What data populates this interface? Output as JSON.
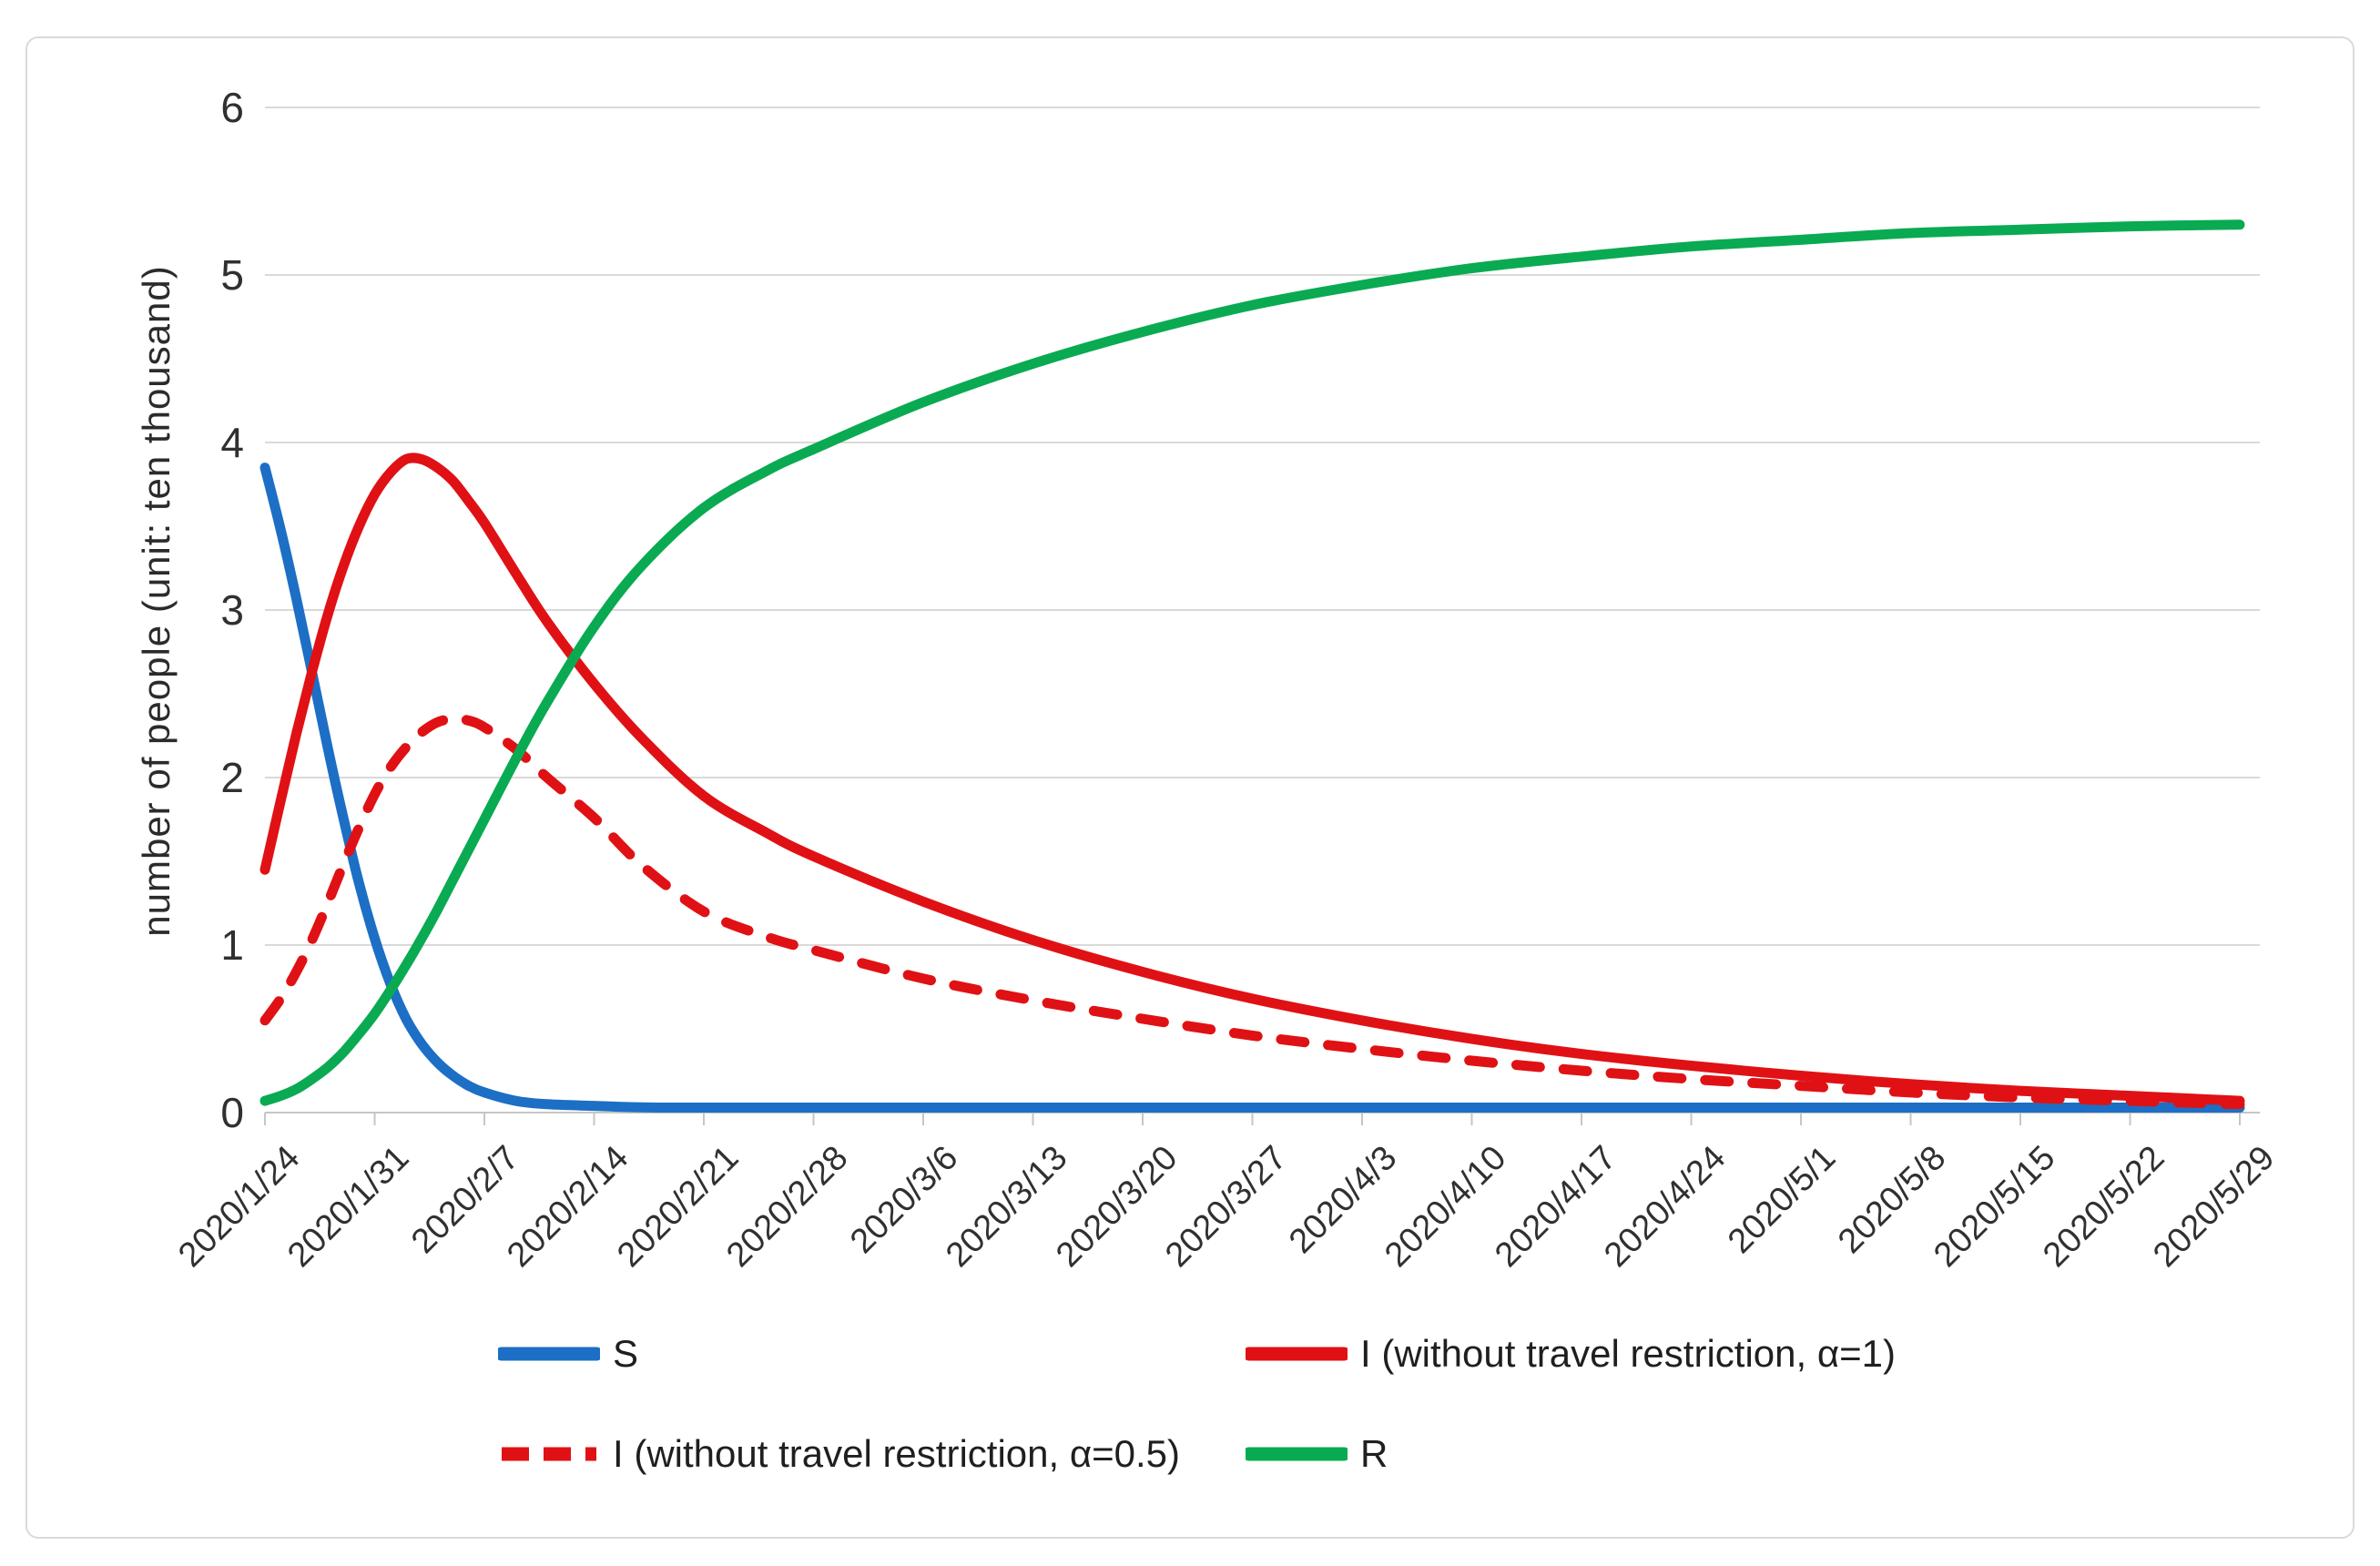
{
  "figure": {
    "background": "#ffffff",
    "border_color": "#dadada"
  },
  "y_axis": {
    "title": "number of people (unit: ten thousand)",
    "ticks": [
      "0",
      "1",
      "2",
      "3",
      "4",
      "5",
      "6"
    ],
    "range": [
      0,
      6
    ]
  },
  "x_axis": {
    "ticks": [
      "2020/1/24",
      "2020/1/31",
      "2020/2/7",
      "2020/2/14",
      "2020/2/21",
      "2020/2/28",
      "2020/3/6",
      "2020/3/13",
      "2020/3/20",
      "2020/3/27",
      "2020/4/3",
      "2020/4/10",
      "2020/4/17",
      "2020/4/24",
      "2020/5/1",
      "2020/5/8",
      "2020/5/15",
      "2020/5/22",
      "2020/5/29"
    ]
  },
  "legend": {
    "items": [
      {
        "label": "S",
        "color": "#1c6fc4",
        "style": "solid"
      },
      {
        "label": "I (without travel restriction, α=1)",
        "color": "#e01114",
        "style": "solid"
      },
      {
        "label": "I  (without travel restriction, α=0.5)",
        "color": "#e01114",
        "style": "dashed"
      },
      {
        "label": "R",
        "color": "#0aaa52",
        "style": "solid"
      }
    ]
  },
  "chart_data": {
    "type": "line",
    "title": "",
    "xlabel": "",
    "ylabel": "number of people (unit: ten thousand)",
    "ylim": [
      0,
      6
    ],
    "grid": "horizontal",
    "legend_position": "bottom",
    "x_unit": "days since 2020/1/24, ticks weekly",
    "x_tick_labels": [
      "2020/1/24",
      "2020/1/31",
      "2020/2/7",
      "2020/2/14",
      "2020/2/21",
      "2020/2/28",
      "2020/3/6",
      "2020/3/13",
      "2020/3/20",
      "2020/3/27",
      "2020/4/3",
      "2020/4/10",
      "2020/4/17",
      "2020/4/24",
      "2020/5/1",
      "2020/5/8",
      "2020/5/15",
      "2020/5/22",
      "2020/5/29"
    ],
    "series": [
      {
        "name": "S",
        "color": "#1c6fc4",
        "dash": "solid",
        "points": [
          [
            0,
            3.85
          ],
          [
            1,
            3.48
          ],
          [
            2,
            3.07
          ],
          [
            3,
            2.63
          ],
          [
            4,
            2.18
          ],
          [
            5,
            1.76
          ],
          [
            6,
            1.37
          ],
          [
            7,
            1.04
          ],
          [
            8,
            0.77
          ],
          [
            9,
            0.56
          ],
          [
            10,
            0.41
          ],
          [
            11,
            0.3
          ],
          [
            12,
            0.22
          ],
          [
            13,
            0.16
          ],
          [
            14,
            0.12
          ],
          [
            16,
            0.07
          ],
          [
            18,
            0.05
          ],
          [
            21,
            0.04
          ],
          [
            25,
            0.03
          ],
          [
            35,
            0.03
          ],
          [
            56,
            0.03
          ],
          [
            91,
            0.03
          ],
          [
            126,
            0.03
          ]
        ]
      },
      {
        "name": "I (without travel restriction, α=1)",
        "color": "#e01114",
        "dash": "solid",
        "points": [
          [
            0,
            1.45
          ],
          [
            1,
            1.86
          ],
          [
            2,
            2.26
          ],
          [
            3,
            2.63
          ],
          [
            4,
            2.97
          ],
          [
            5,
            3.26
          ],
          [
            6,
            3.5
          ],
          [
            7,
            3.69
          ],
          [
            8,
            3.82
          ],
          [
            9,
            3.9
          ],
          [
            10,
            3.9
          ],
          [
            11,
            3.85
          ],
          [
            12,
            3.77
          ],
          [
            13,
            3.65
          ],
          [
            14,
            3.52
          ],
          [
            16,
            3.22
          ],
          [
            18,
            2.93
          ],
          [
            21,
            2.56
          ],
          [
            24,
            2.24
          ],
          [
            28,
            1.89
          ],
          [
            32,
            1.67
          ],
          [
            35,
            1.53
          ],
          [
            42,
            1.26
          ],
          [
            49,
            1.03
          ],
          [
            56,
            0.84
          ],
          [
            63,
            0.68
          ],
          [
            70,
            0.55
          ],
          [
            77,
            0.44
          ],
          [
            84,
            0.35
          ],
          [
            91,
            0.28
          ],
          [
            98,
            0.22
          ],
          [
            105,
            0.17
          ],
          [
            112,
            0.13
          ],
          [
            119,
            0.1
          ],
          [
            126,
            0.07
          ]
        ]
      },
      {
        "name": "I (without travel restriction, α=0.5)",
        "color": "#e01114",
        "dash": "dashed",
        "points": [
          [
            0,
            0.55
          ],
          [
            1,
            0.68
          ],
          [
            2,
            0.84
          ],
          [
            3,
            1.03
          ],
          [
            4,
            1.25
          ],
          [
            5,
            1.48
          ],
          [
            6,
            1.7
          ],
          [
            7,
            1.9
          ],
          [
            8,
            2.06
          ],
          [
            9,
            2.18
          ],
          [
            10,
            2.27
          ],
          [
            11,
            2.33
          ],
          [
            12,
            2.35
          ],
          [
            13,
            2.34
          ],
          [
            14,
            2.3
          ],
          [
            16,
            2.17
          ],
          [
            18,
            2.0
          ],
          [
            21,
            1.76
          ],
          [
            24,
            1.48
          ],
          [
            28,
            1.2
          ],
          [
            32,
            1.05
          ],
          [
            35,
            0.97
          ],
          [
            42,
            0.8
          ],
          [
            49,
            0.67
          ],
          [
            56,
            0.56
          ],
          [
            63,
            0.46
          ],
          [
            70,
            0.38
          ],
          [
            77,
            0.31
          ],
          [
            84,
            0.25
          ],
          [
            91,
            0.2
          ],
          [
            98,
            0.16
          ],
          [
            105,
            0.12
          ],
          [
            112,
            0.09
          ],
          [
            119,
            0.07
          ],
          [
            126,
            0.05
          ]
        ]
      },
      {
        "name": "R",
        "color": "#0aaa52",
        "dash": "solid",
        "points": [
          [
            0,
            0.07
          ],
          [
            1,
            0.1
          ],
          [
            2,
            0.14
          ],
          [
            3,
            0.2
          ],
          [
            4,
            0.27
          ],
          [
            5,
            0.36
          ],
          [
            6,
            0.47
          ],
          [
            7,
            0.59
          ],
          [
            8,
            0.73
          ],
          [
            9,
            0.88
          ],
          [
            10,
            1.04
          ],
          [
            11,
            1.21
          ],
          [
            12,
            1.39
          ],
          [
            13,
            1.57
          ],
          [
            14,
            1.75
          ],
          [
            16,
            2.11
          ],
          [
            18,
            2.45
          ],
          [
            21,
            2.9
          ],
          [
            24,
            3.26
          ],
          [
            28,
            3.61
          ],
          [
            32,
            3.83
          ],
          [
            35,
            3.96
          ],
          [
            42,
            4.24
          ],
          [
            49,
            4.47
          ],
          [
            56,
            4.66
          ],
          [
            63,
            4.82
          ],
          [
            70,
            4.94
          ],
          [
            77,
            5.04
          ],
          [
            84,
            5.11
          ],
          [
            91,
            5.17
          ],
          [
            98,
            5.21
          ],
          [
            105,
            5.25
          ],
          [
            112,
            5.27
          ],
          [
            119,
            5.29
          ],
          [
            126,
            5.3
          ]
        ]
      }
    ],
    "style": {
      "gridline_color": "#d9d9d9",
      "axis_color": "#c6c6c6",
      "tick_text_color": "#303030",
      "line_width": 11
    }
  }
}
